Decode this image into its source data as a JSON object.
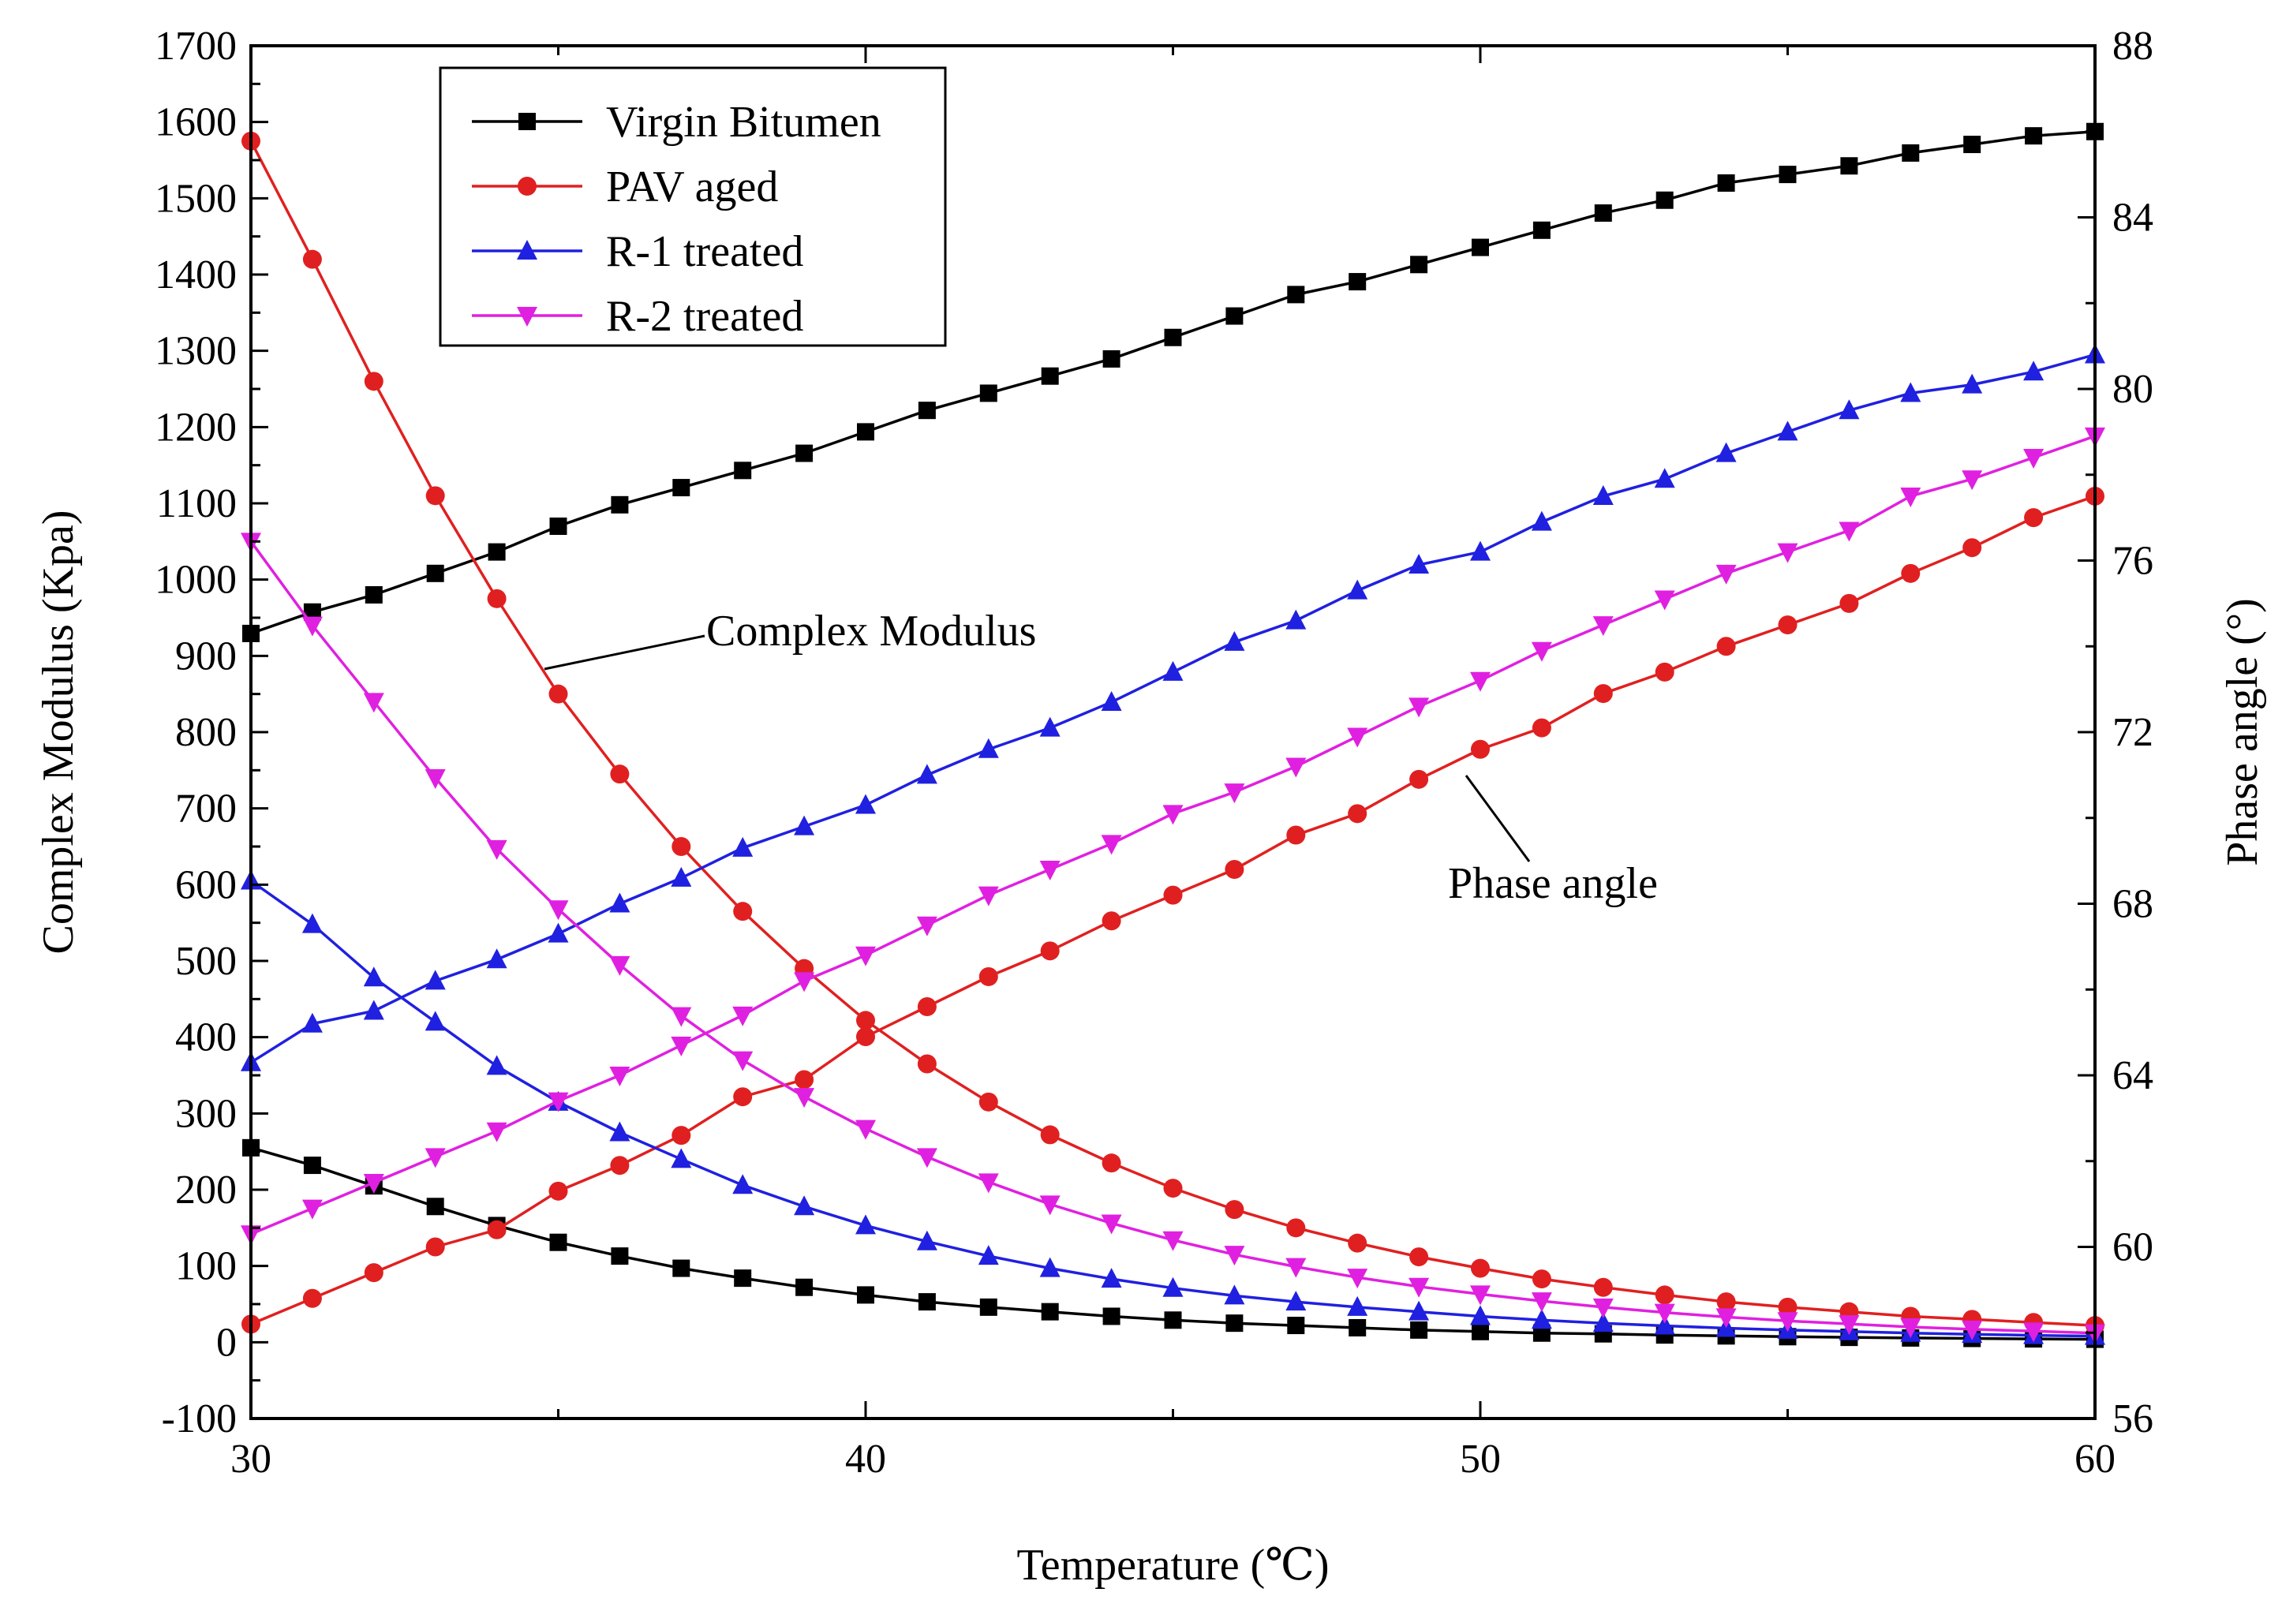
{
  "chart_data": {
    "type": "line",
    "xlabel": "Temperature (℃)",
    "ylabel_left": "Complex Modulus (Kpa)",
    "ylabel_right": "Phase angle (°)",
    "xlim": [
      30,
      60
    ],
    "ylim_left": [
      -100,
      1700
    ],
    "ylim_right": [
      56,
      88
    ],
    "xticks": [
      "30",
      "40",
      "50",
      "60"
    ],
    "yticks_left": [
      "-100",
      "0",
      "100",
      "200",
      "300",
      "400",
      "500",
      "600",
      "700",
      "800",
      "900",
      "1000",
      "1100",
      "1200",
      "1300",
      "1400",
      "1500",
      "1600",
      "1700"
    ],
    "yticks_right": [
      "56",
      "60",
      "64",
      "68",
      "72",
      "76",
      "80",
      "84",
      "88"
    ],
    "legend_position": "top-left",
    "grid": false,
    "annotations": [
      {
        "text": "Complex Modulus",
        "points_to": "decreasing modulus curves"
      },
      {
        "text": "Phase angle",
        "points_to": "increasing phase angle curves"
      }
    ],
    "temperatures": [
      30,
      31,
      32,
      33,
      34,
      35,
      36,
      37,
      38,
      39,
      40,
      41,
      42,
      43,
      44,
      45,
      46,
      47,
      48,
      49,
      50,
      51,
      52,
      53,
      54,
      55,
      56,
      57,
      58,
      59,
      60
    ],
    "series": [
      {
        "name": "Virgin Bitumen",
        "color": "#000000",
        "marker": "square",
        "complex_modulus": [
          255,
          232,
          205,
          178,
          153,
          131,
          113,
          97,
          84,
          72,
          62,
          53,
          46,
          40,
          34,
          29,
          25,
          22,
          19,
          16,
          14,
          12,
          11,
          9.5,
          8.3,
          7.3,
          6.4,
          5.6,
          5,
          4.4,
          3.9
        ],
        "phase_angle": [
          74.3,
          74.8,
          75.2,
          75.7,
          76.2,
          76.8,
          77.3,
          77.7,
          78.1,
          78.5,
          79.0,
          79.5,
          79.9,
          80.3,
          80.7,
          81.2,
          81.7,
          82.2,
          82.5,
          82.9,
          83.3,
          83.7,
          84.1,
          84.4,
          84.8,
          85.0,
          85.2,
          85.5,
          85.7,
          85.9,
          86.0
        ]
      },
      {
        "name": "PAV aged",
        "color": "#e02020",
        "marker": "circle",
        "complex_modulus": [
          1575,
          1420,
          1260,
          1110,
          975,
          850,
          745,
          650,
          565,
          490,
          422,
          365,
          315,
          272,
          235,
          202,
          174,
          150,
          130,
          112,
          97,
          83,
          72,
          62,
          53,
          46,
          40,
          34,
          30,
          26,
          22
        ],
        "phase_angle": [
          58.2,
          58.8,
          59.4,
          60.0,
          60.4,
          61.3,
          61.9,
          62.6,
          63.5,
          63.9,
          64.9,
          65.6,
          66.3,
          66.9,
          67.6,
          68.2,
          68.8,
          69.6,
          70.1,
          70.9,
          71.6,
          72.1,
          72.9,
          73.4,
          74.0,
          74.5,
          75.0,
          75.7,
          76.3,
          77.0,
          77.5
        ]
      },
      {
        "name": "R-1 treated",
        "color": "#2020e0",
        "marker": "triangle-up",
        "complex_modulus": [
          605,
          548,
          478,
          420,
          362,
          315,
          275,
          240,
          206,
          178,
          153,
          132,
          113,
          97,
          83,
          71,
          61,
          53,
          46,
          40,
          34,
          29,
          25,
          21.5,
          18.5,
          16,
          14,
          12,
          10.5,
          9,
          8
        ],
        "phase_angle": [
          64.3,
          65.2,
          65.5,
          66.2,
          66.7,
          67.3,
          68.0,
          68.6,
          69.3,
          69.8,
          70.3,
          71.0,
          71.6,
          72.1,
          72.7,
          73.4,
          74.1,
          74.6,
          75.3,
          75.9,
          76.2,
          76.9,
          77.5,
          77.9,
          78.5,
          79.0,
          79.5,
          79.9,
          80.1,
          80.4,
          80.8
        ]
      },
      {
        "name": "R-2 treated",
        "color": "#e020e0",
        "marker": "triangle-down",
        "complex_modulus": [
          1050,
          940,
          840,
          740,
          647,
          568,
          495,
          428,
          370,
          322,
          280,
          243,
          210,
          181,
          156,
          134,
          115,
          99,
          85,
          73,
          63,
          54,
          46,
          39,
          33,
          28,
          24,
          20,
          17,
          14.5,
          12
        ],
        "phase_angle": [
          60.3,
          60.9,
          61.5,
          62.1,
          62.7,
          63.4,
          64.0,
          64.7,
          65.4,
          66.2,
          66.8,
          67.5,
          68.2,
          68.8,
          69.4,
          70.1,
          70.6,
          71.2,
          71.9,
          72.6,
          73.2,
          73.9,
          74.5,
          75.1,
          75.7,
          76.2,
          76.7,
          77.5,
          77.9,
          78.4,
          78.9
        ]
      }
    ]
  }
}
